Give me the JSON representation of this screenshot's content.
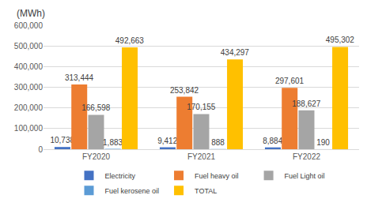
{
  "chart_data": {
    "type": "bar",
    "y_axis_label": "(MWh)",
    "categories": [
      "FY2020",
      "FY2021",
      "FY2022"
    ],
    "series": [
      {
        "name": "Electricity",
        "color": "#4472c4",
        "values": [
          10738,
          9412,
          8884
        ],
        "value_labels": [
          "10,738",
          "9,412",
          "8,884"
        ]
      },
      {
        "name": "Fuel heavy oil",
        "color": "#ed7d31",
        "values": [
          313444,
          253842,
          297601
        ],
        "value_labels": [
          "313,444",
          "253,842",
          "297,601"
        ]
      },
      {
        "name": "Fuel Light oil",
        "color": "#a5a5a5",
        "values": [
          166598,
          170155,
          188627
        ],
        "value_labels": [
          "166,598",
          "170,155",
          "188,627"
        ]
      },
      {
        "name": "Fuel kerosene oil",
        "color": "#5b9bd5",
        "values": [
          1883,
          888,
          190
        ],
        "value_labels": [
          "1,883",
          "888",
          "190"
        ]
      },
      {
        "name": "TOTAL",
        "color": "#ffc000",
        "values": [
          492663,
          434297,
          495302
        ],
        "value_labels": [
          "492,663",
          "434,297",
          "495,302"
        ]
      }
    ],
    "ylim": [
      0,
      600000
    ],
    "yticks": [
      0,
      {
        "value": 100000,
        "label": "100,000"
      },
      {
        "value": 200000,
        "label": "200,000"
      },
      {
        "value": 300000,
        "label": "300,000"
      },
      {
        "value": 400000,
        "label": "400,000"
      },
      {
        "value": 500000,
        "label": "500,000"
      },
      {
        "value": 600000,
        "label": "600,000"
      }
    ],
    "grid": true,
    "data_labels": true,
    "legend": "bottom"
  }
}
